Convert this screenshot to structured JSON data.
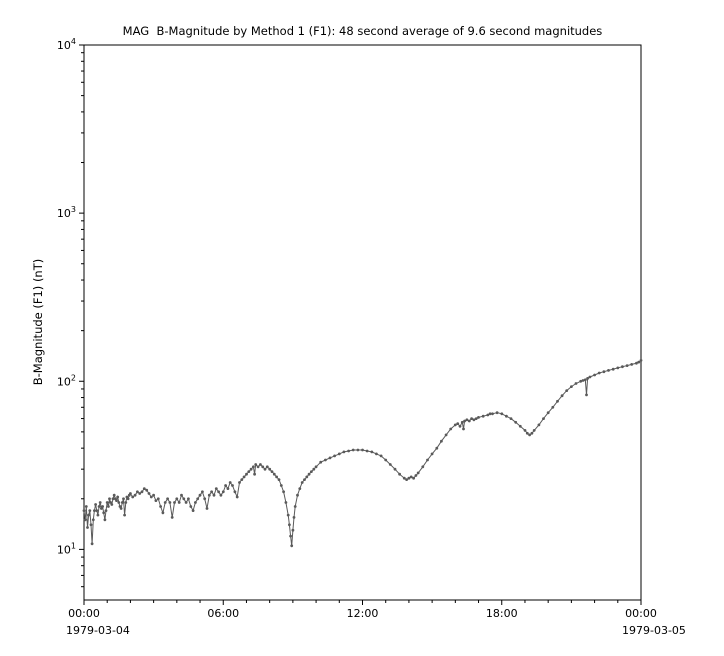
{
  "chart_data": {
    "type": "line",
    "title": "MAG  B-Magnitude by Method 1 (F1): 48 second average of 9.6 second magnitudes",
    "xlabel": "",
    "ylabel": "B-Magnitude (F1) (nT)",
    "x_start_date": "1979-03-04",
    "x_end_date": "1979-03-05",
    "xlim_hours": [
      0,
      24
    ],
    "x_ticks": [
      {
        "hours": 0,
        "label": "00:00"
      },
      {
        "hours": 6,
        "label": "06:00"
      },
      {
        "hours": 12,
        "label": "12:00"
      },
      {
        "hours": 18,
        "label": "18:00"
      },
      {
        "hours": 24,
        "label": "00:00"
      }
    ],
    "x_minor_tick_interval_hours": 1,
    "y_scale": "log",
    "ylim": [
      5,
      10000
    ],
    "y_major_ticks": [
      10,
      100,
      1000,
      10000
    ],
    "grid": false,
    "legend": "none",
    "line_color": "#5a5a5a",
    "marker": "dot",
    "series": [
      {
        "name": "B-Magnitude (F1)",
        "units": "nT",
        "points_hours_nT": [
          [
            0.0,
            17
          ],
          [
            0.05,
            15
          ],
          [
            0.1,
            18
          ],
          [
            0.15,
            13.5
          ],
          [
            0.2,
            16
          ],
          [
            0.25,
            17
          ],
          [
            0.3,
            14
          ],
          [
            0.35,
            10.8
          ],
          [
            0.4,
            15
          ],
          [
            0.45,
            17
          ],
          [
            0.5,
            18.5
          ],
          [
            0.55,
            17
          ],
          [
            0.6,
            16
          ],
          [
            0.65,
            18
          ],
          [
            0.7,
            19
          ],
          [
            0.75,
            17.5
          ],
          [
            0.8,
            18
          ],
          [
            0.85,
            16.5
          ],
          [
            0.9,
            15
          ],
          [
            0.95,
            17
          ],
          [
            1.0,
            19
          ],
          [
            1.05,
            18
          ],
          [
            1.1,
            20
          ],
          [
            1.15,
            19
          ],
          [
            1.2,
            18.5
          ],
          [
            1.25,
            20
          ],
          [
            1.3,
            21
          ],
          [
            1.35,
            20
          ],
          [
            1.4,
            19.5
          ],
          [
            1.45,
            20.5
          ],
          [
            1.5,
            19
          ],
          [
            1.55,
            18
          ],
          [
            1.6,
            17.5
          ],
          [
            1.65,
            19
          ],
          [
            1.7,
            20
          ],
          [
            1.75,
            16
          ],
          [
            1.8,
            19
          ],
          [
            1.85,
            20.5
          ],
          [
            1.9,
            20
          ],
          [
            1.95,
            21
          ],
          [
            2.0,
            21.5
          ],
          [
            2.1,
            20.5
          ],
          [
            2.2,
            21
          ],
          [
            2.3,
            22
          ],
          [
            2.4,
            21.5
          ],
          [
            2.5,
            22
          ],
          [
            2.6,
            23
          ],
          [
            2.7,
            22.5
          ],
          [
            2.8,
            21.5
          ],
          [
            2.9,
            20.5
          ],
          [
            3.0,
            21
          ],
          [
            3.1,
            19.5
          ],
          [
            3.2,
            20
          ],
          [
            3.3,
            18
          ],
          [
            3.4,
            16.5
          ],
          [
            3.5,
            19
          ],
          [
            3.6,
            20
          ],
          [
            3.7,
            19
          ],
          [
            3.8,
            15.5
          ],
          [
            3.9,
            19
          ],
          [
            4.0,
            20
          ],
          [
            4.1,
            19
          ],
          [
            4.2,
            21
          ],
          [
            4.3,
            20
          ],
          [
            4.4,
            19
          ],
          [
            4.5,
            20
          ],
          [
            4.6,
            18
          ],
          [
            4.7,
            17
          ],
          [
            4.8,
            19
          ],
          [
            4.9,
            20
          ],
          [
            5.0,
            21
          ],
          [
            5.1,
            22
          ],
          [
            5.2,
            20
          ],
          [
            5.3,
            17.5
          ],
          [
            5.4,
            21
          ],
          [
            5.5,
            22
          ],
          [
            5.6,
            21
          ],
          [
            5.7,
            23
          ],
          [
            5.8,
            22
          ],
          [
            5.9,
            21
          ],
          [
            6.0,
            22
          ],
          [
            6.1,
            24
          ],
          [
            6.2,
            23
          ],
          [
            6.3,
            25
          ],
          [
            6.4,
            24
          ],
          [
            6.5,
            22
          ],
          [
            6.6,
            20.5
          ],
          [
            6.7,
            25
          ],
          [
            6.8,
            26
          ],
          [
            6.9,
            27
          ],
          [
            7.0,
            28
          ],
          [
            7.1,
            29
          ],
          [
            7.2,
            30
          ],
          [
            7.3,
            31
          ],
          [
            7.35,
            28
          ],
          [
            7.4,
            32
          ],
          [
            7.5,
            31
          ],
          [
            7.6,
            32
          ],
          [
            7.7,
            31
          ],
          [
            7.8,
            30
          ],
          [
            7.9,
            31
          ],
          [
            8.0,
            30
          ],
          [
            8.1,
            29
          ],
          [
            8.2,
            28
          ],
          [
            8.3,
            27
          ],
          [
            8.4,
            26
          ],
          [
            8.5,
            24
          ],
          [
            8.6,
            22
          ],
          [
            8.7,
            19
          ],
          [
            8.8,
            16
          ],
          [
            8.85,
            14
          ],
          [
            8.9,
            12
          ],
          [
            8.95,
            10.5
          ],
          [
            9.0,
            13
          ],
          [
            9.05,
            15.5
          ],
          [
            9.1,
            18
          ],
          [
            9.2,
            21
          ],
          [
            9.3,
            23
          ],
          [
            9.4,
            25
          ],
          [
            9.5,
            26
          ],
          [
            9.6,
            27
          ],
          [
            9.7,
            28
          ],
          [
            9.8,
            29
          ],
          [
            9.9,
            30
          ],
          [
            10.0,
            31
          ],
          [
            10.2,
            33
          ],
          [
            10.4,
            34
          ],
          [
            10.6,
            35
          ],
          [
            10.8,
            36
          ],
          [
            11.0,
            37
          ],
          [
            11.2,
            38
          ],
          [
            11.4,
            38.5
          ],
          [
            11.6,
            39
          ],
          [
            11.8,
            39
          ],
          [
            12.0,
            39
          ],
          [
            12.2,
            38.5
          ],
          [
            12.4,
            38
          ],
          [
            12.6,
            37
          ],
          [
            12.8,
            36
          ],
          [
            13.0,
            34
          ],
          [
            13.2,
            32
          ],
          [
            13.4,
            30
          ],
          [
            13.6,
            28
          ],
          [
            13.8,
            26.5
          ],
          [
            13.9,
            26
          ],
          [
            14.0,
            26.5
          ],
          [
            14.1,
            27
          ],
          [
            14.2,
            26.5
          ],
          [
            14.3,
            27.5
          ],
          [
            14.4,
            28.5
          ],
          [
            14.6,
            31
          ],
          [
            14.8,
            34
          ],
          [
            15.0,
            37
          ],
          [
            15.2,
            40
          ],
          [
            15.4,
            44
          ],
          [
            15.6,
            48
          ],
          [
            15.8,
            52
          ],
          [
            16.0,
            55
          ],
          [
            16.1,
            56
          ],
          [
            16.2,
            54
          ],
          [
            16.3,
            57
          ],
          [
            16.35,
            52
          ],
          [
            16.4,
            58
          ],
          [
            16.5,
            59
          ],
          [
            16.6,
            58
          ],
          [
            16.7,
            60
          ],
          [
            16.8,
            59
          ],
          [
            16.9,
            60
          ],
          [
            17.0,
            61
          ],
          [
            17.2,
            62
          ],
          [
            17.4,
            63
          ],
          [
            17.5,
            64
          ],
          [
            17.6,
            64
          ],
          [
            17.8,
            65
          ],
          [
            18.0,
            64
          ],
          [
            18.2,
            62
          ],
          [
            18.4,
            60
          ],
          [
            18.6,
            57
          ],
          [
            18.8,
            54
          ],
          [
            19.0,
            51
          ],
          [
            19.1,
            49
          ],
          [
            19.2,
            48
          ],
          [
            19.3,
            49
          ],
          [
            19.4,
            51
          ],
          [
            19.6,
            55
          ],
          [
            19.8,
            60
          ],
          [
            20.0,
            65
          ],
          [
            20.2,
            70
          ],
          [
            20.4,
            76
          ],
          [
            20.6,
            82
          ],
          [
            20.8,
            88
          ],
          [
            21.0,
            93
          ],
          [
            21.2,
            97
          ],
          [
            21.4,
            100
          ],
          [
            21.5,
            101
          ],
          [
            21.6,
            102
          ],
          [
            21.65,
            83
          ],
          [
            21.7,
            104
          ],
          [
            21.8,
            106
          ],
          [
            22.0,
            109
          ],
          [
            22.2,
            112
          ],
          [
            22.4,
            114
          ],
          [
            22.6,
            116
          ],
          [
            22.8,
            118
          ],
          [
            23.0,
            120
          ],
          [
            23.2,
            122
          ],
          [
            23.4,
            124
          ],
          [
            23.6,
            126
          ],
          [
            23.8,
            128
          ],
          [
            23.9,
            130
          ],
          [
            24.0,
            133
          ]
        ]
      }
    ]
  }
}
